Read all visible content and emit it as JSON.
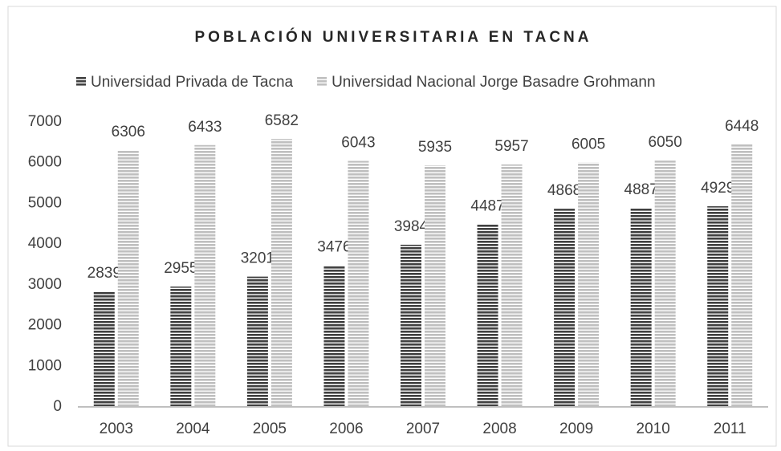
{
  "chart_data": {
    "type": "bar",
    "title": "POBLACIÓN UNIVERSITARIA EN TACNA",
    "categories": [
      "2003",
      "2004",
      "2005",
      "2006",
      "2007",
      "2008",
      "2009",
      "2010",
      "2011"
    ],
    "series": [
      {
        "name": "Universidad Privada de Tacna",
        "color": "#404040",
        "values": [
          2839,
          2955,
          3201,
          3476,
          3984,
          4487,
          4868,
          4887,
          4929
        ]
      },
      {
        "name": "Universidad Nacional Jorge Basadre Grohmann",
        "color": "#bfbfbf",
        "values": [
          6306,
          6433,
          6582,
          6043,
          5935,
          5957,
          6005,
          6050,
          6448
        ]
      }
    ],
    "ylim": [
      0,
      7000
    ],
    "yticks": [
      0,
      1000,
      2000,
      3000,
      4000,
      5000,
      6000,
      7000
    ],
    "grid": false,
    "legend": "top"
  }
}
